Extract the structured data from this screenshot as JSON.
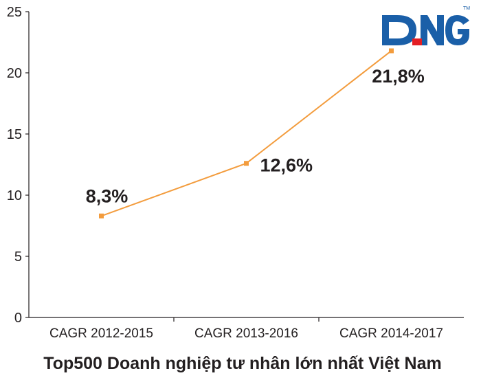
{
  "logo": {
    "text": "DNG",
    "trademark": "TM",
    "color_blue": "#1a5fa8",
    "color_red": "#e31e24"
  },
  "chart_data": {
    "type": "line",
    "categories": [
      "CAGR 2012-2015",
      "CAGR 2013-2016",
      "CAGR 2014-2017"
    ],
    "series": [
      {
        "values": [
          8.3,
          12.6,
          21.8
        ],
        "labels": [
          "8,3%",
          "12,6%",
          "21,8%"
        ],
        "color": "#f39c3d"
      }
    ],
    "title": "",
    "xlabel": "Top500 Doanh nghiệp tư nhân lớn nhất Việt Nam",
    "ylabel": "",
    "ylim": [
      0,
      25
    ],
    "yticks": [
      0,
      5,
      10,
      15,
      20,
      25
    ],
    "ytick_labels": [
      "0",
      "5",
      "10",
      "15",
      "20",
      "25"
    ],
    "grid": false,
    "legend": "none"
  }
}
